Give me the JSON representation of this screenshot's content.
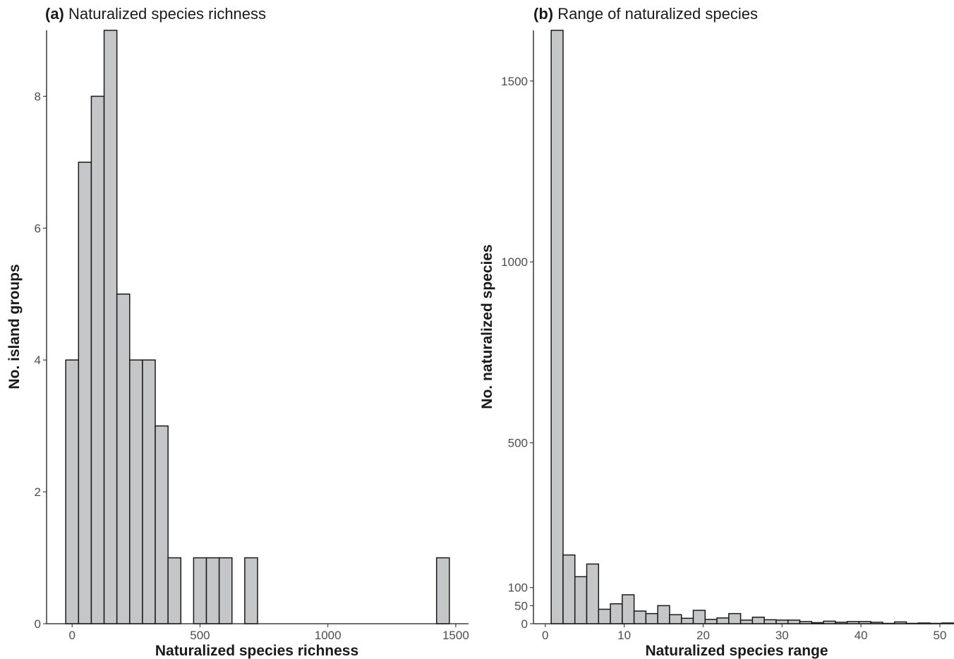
{
  "chart_data": [
    {
      "type": "bar",
      "panel_tag": "(a)",
      "title": "Naturalized species richness",
      "xlabel": "Naturalized species richness",
      "ylabel": "No. island groups",
      "xlim": [
        -100,
        1550
      ],
      "ylim": [
        0,
        9
      ],
      "bin_width": 50,
      "bins": [
        {
          "x": 0,
          "count": 4
        },
        {
          "x": 50,
          "count": 7
        },
        {
          "x": 100,
          "count": 8
        },
        {
          "x": 150,
          "count": 9
        },
        {
          "x": 200,
          "count": 5
        },
        {
          "x": 250,
          "count": 4
        },
        {
          "x": 300,
          "count": 4
        },
        {
          "x": 350,
          "count": 3
        },
        {
          "x": 400,
          "count": 1
        },
        {
          "x": 450,
          "count": 0
        },
        {
          "x": 500,
          "count": 1
        },
        {
          "x": 550,
          "count": 1
        },
        {
          "x": 600,
          "count": 1
        },
        {
          "x": 650,
          "count": 0
        },
        {
          "x": 700,
          "count": 1
        },
        {
          "x": 750,
          "count": 0
        },
        {
          "x": 800,
          "count": 0
        },
        {
          "x": 850,
          "count": 0
        },
        {
          "x": 900,
          "count": 0
        },
        {
          "x": 950,
          "count": 0
        },
        {
          "x": 1000,
          "count": 0
        },
        {
          "x": 1050,
          "count": 0
        },
        {
          "x": 1100,
          "count": 0
        },
        {
          "x": 1150,
          "count": 0
        },
        {
          "x": 1200,
          "count": 0
        },
        {
          "x": 1250,
          "count": 0
        },
        {
          "x": 1300,
          "count": 0
        },
        {
          "x": 1350,
          "count": 0
        },
        {
          "x": 1400,
          "count": 0
        },
        {
          "x": 1450,
          "count": 1
        }
      ],
      "x_ticks": [
        0,
        500,
        1000,
        1500
      ],
      "y_ticks": [
        0,
        2,
        4,
        6,
        8
      ]
    },
    {
      "type": "bar",
      "panel_tag": "(b)",
      "title": "Range of naturalized species",
      "xlabel": "Naturalized species range",
      "ylabel": "No. naturalized species",
      "xlim": [
        -1.5,
        50
      ],
      "ylim": [
        0,
        1640
      ],
      "bin_width": 1.5,
      "bins": [
        {
          "x": 1.5,
          "count": 1640
        },
        {
          "x": 3.0,
          "count": 190
        },
        {
          "x": 4.5,
          "count": 130
        },
        {
          "x": 6.0,
          "count": 165
        },
        {
          "x": 7.5,
          "count": 40
        },
        {
          "x": 9.0,
          "count": 55
        },
        {
          "x": 10.5,
          "count": 80
        },
        {
          "x": 12.0,
          "count": 35
        },
        {
          "x": 13.5,
          "count": 28
        },
        {
          "x": 15.0,
          "count": 50
        },
        {
          "x": 16.5,
          "count": 25
        },
        {
          "x": 18.0,
          "count": 15
        },
        {
          "x": 19.5,
          "count": 37
        },
        {
          "x": 21.0,
          "count": 12
        },
        {
          "x": 22.5,
          "count": 16
        },
        {
          "x": 24.0,
          "count": 28
        },
        {
          "x": 25.5,
          "count": 10
        },
        {
          "x": 27.0,
          "count": 18
        },
        {
          "x": 28.5,
          "count": 11
        },
        {
          "x": 30.0,
          "count": 10
        },
        {
          "x": 31.5,
          "count": 10
        },
        {
          "x": 33.0,
          "count": 6
        },
        {
          "x": 34.5,
          "count": 3
        },
        {
          "x": 36.0,
          "count": 7
        },
        {
          "x": 37.5,
          "count": 4
        },
        {
          "x": 39.0,
          "count": 6
        },
        {
          "x": 40.5,
          "count": 6
        },
        {
          "x": 42.0,
          "count": 4
        },
        {
          "x": 43.5,
          "count": 1
        },
        {
          "x": 45.0,
          "count": 5
        },
        {
          "x": 46.5,
          "count": 1
        },
        {
          "x": 48.0,
          "count": 2
        },
        {
          "x": 49.5,
          "count": 1
        },
        {
          "x": 51.0,
          "count": 2
        }
      ],
      "x_ticks": [
        0,
        10,
        20,
        30,
        40,
        50
      ],
      "y_ticks": [
        0,
        50,
        100,
        500,
        1000,
        1500
      ]
    }
  ]
}
